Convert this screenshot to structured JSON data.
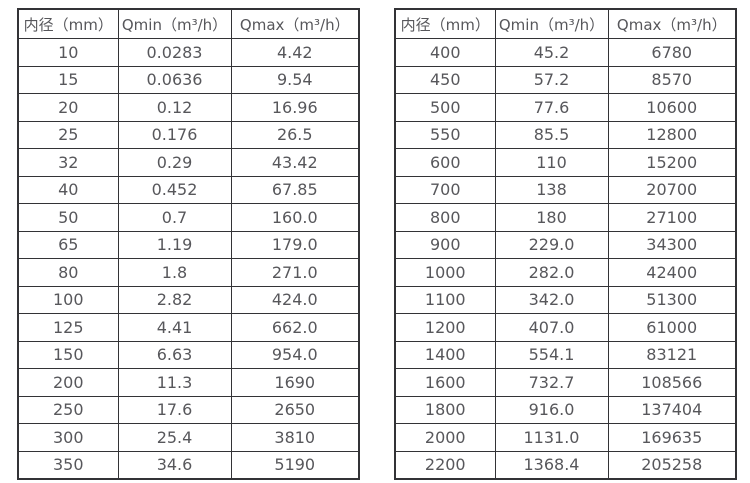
{
  "colors": {
    "background": "#ffffff",
    "border": "#333336",
    "text": "#57575b"
  },
  "headers": [
    "内径（mm）",
    "Qmin（m³/h）",
    "Qmax（m³/h）"
  ],
  "tables": [
    {
      "rows": [
        [
          "10",
          "0.0283",
          "4.42"
        ],
        [
          "15",
          "0.0636",
          "9.54"
        ],
        [
          "20",
          "0.12",
          "16.96"
        ],
        [
          "25",
          "0.176",
          "26.5"
        ],
        [
          "32",
          "0.29",
          "43.42"
        ],
        [
          "40",
          "0.452",
          "67.85"
        ],
        [
          "50",
          "0.7",
          "160.0"
        ],
        [
          "65",
          "1.19",
          "179.0"
        ],
        [
          "80",
          "1.8",
          "271.0"
        ],
        [
          "100",
          "2.82",
          "424.0"
        ],
        [
          "125",
          "4.41",
          "662.0"
        ],
        [
          "150",
          "6.63",
          "954.0"
        ],
        [
          "200",
          "11.3",
          "1690"
        ],
        [
          "250",
          "17.6",
          "2650"
        ],
        [
          "300",
          "25.4",
          "3810"
        ],
        [
          "350",
          "34.6",
          "5190"
        ]
      ]
    },
    {
      "rows": [
        [
          "400",
          "45.2",
          "6780"
        ],
        [
          "450",
          "57.2",
          "8570"
        ],
        [
          "500",
          "77.6",
          "10600"
        ],
        [
          "550",
          "85.5",
          "12800"
        ],
        [
          "600",
          "110",
          "15200"
        ],
        [
          "700",
          "138",
          "20700"
        ],
        [
          "800",
          "180",
          "27100"
        ],
        [
          "900",
          "229.0",
          "34300"
        ],
        [
          "1000",
          "282.0",
          "42400"
        ],
        [
          "1100",
          "342.0",
          "51300"
        ],
        [
          "1200",
          "407.0",
          "61000"
        ],
        [
          "1400",
          "554.1",
          "83121"
        ],
        [
          "1600",
          "732.7",
          "108566"
        ],
        [
          "1800",
          "916.0",
          "137404"
        ],
        [
          "2000",
          "1131.0",
          "169635"
        ],
        [
          "2200",
          "1368.4",
          "205258"
        ]
      ]
    }
  ]
}
